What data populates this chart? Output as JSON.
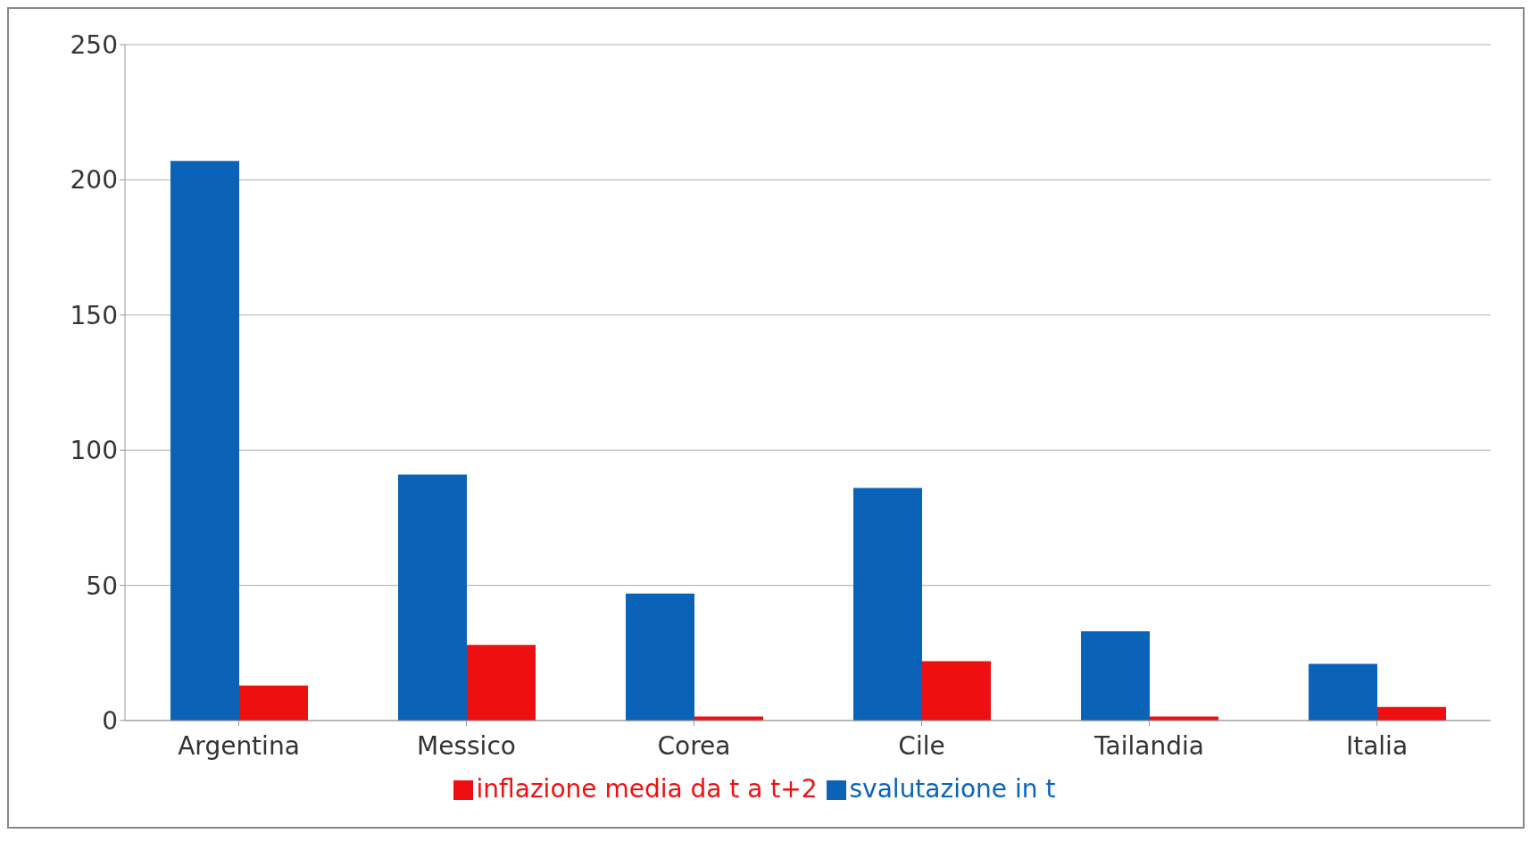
{
  "chart_data": {
    "type": "bar",
    "categories": [
      "Argentina",
      "Messico",
      "Corea",
      "Cile",
      "Tailandia",
      "Italia"
    ],
    "series": [
      {
        "name": "svalutazione in t",
        "color": "#0b63b8",
        "values": [
          207,
          91,
          47,
          86,
          33,
          21
        ]
      },
      {
        "name": "inflazione media da t a t+2",
        "color": "#ee1010",
        "values": [
          13,
          28,
          1.5,
          22,
          1.5,
          5
        ]
      }
    ],
    "ylim": [
      0,
      250
    ],
    "yticks": [
      0,
      50,
      100,
      150,
      200,
      250
    ],
    "grid": "y",
    "legend": "bottom"
  }
}
